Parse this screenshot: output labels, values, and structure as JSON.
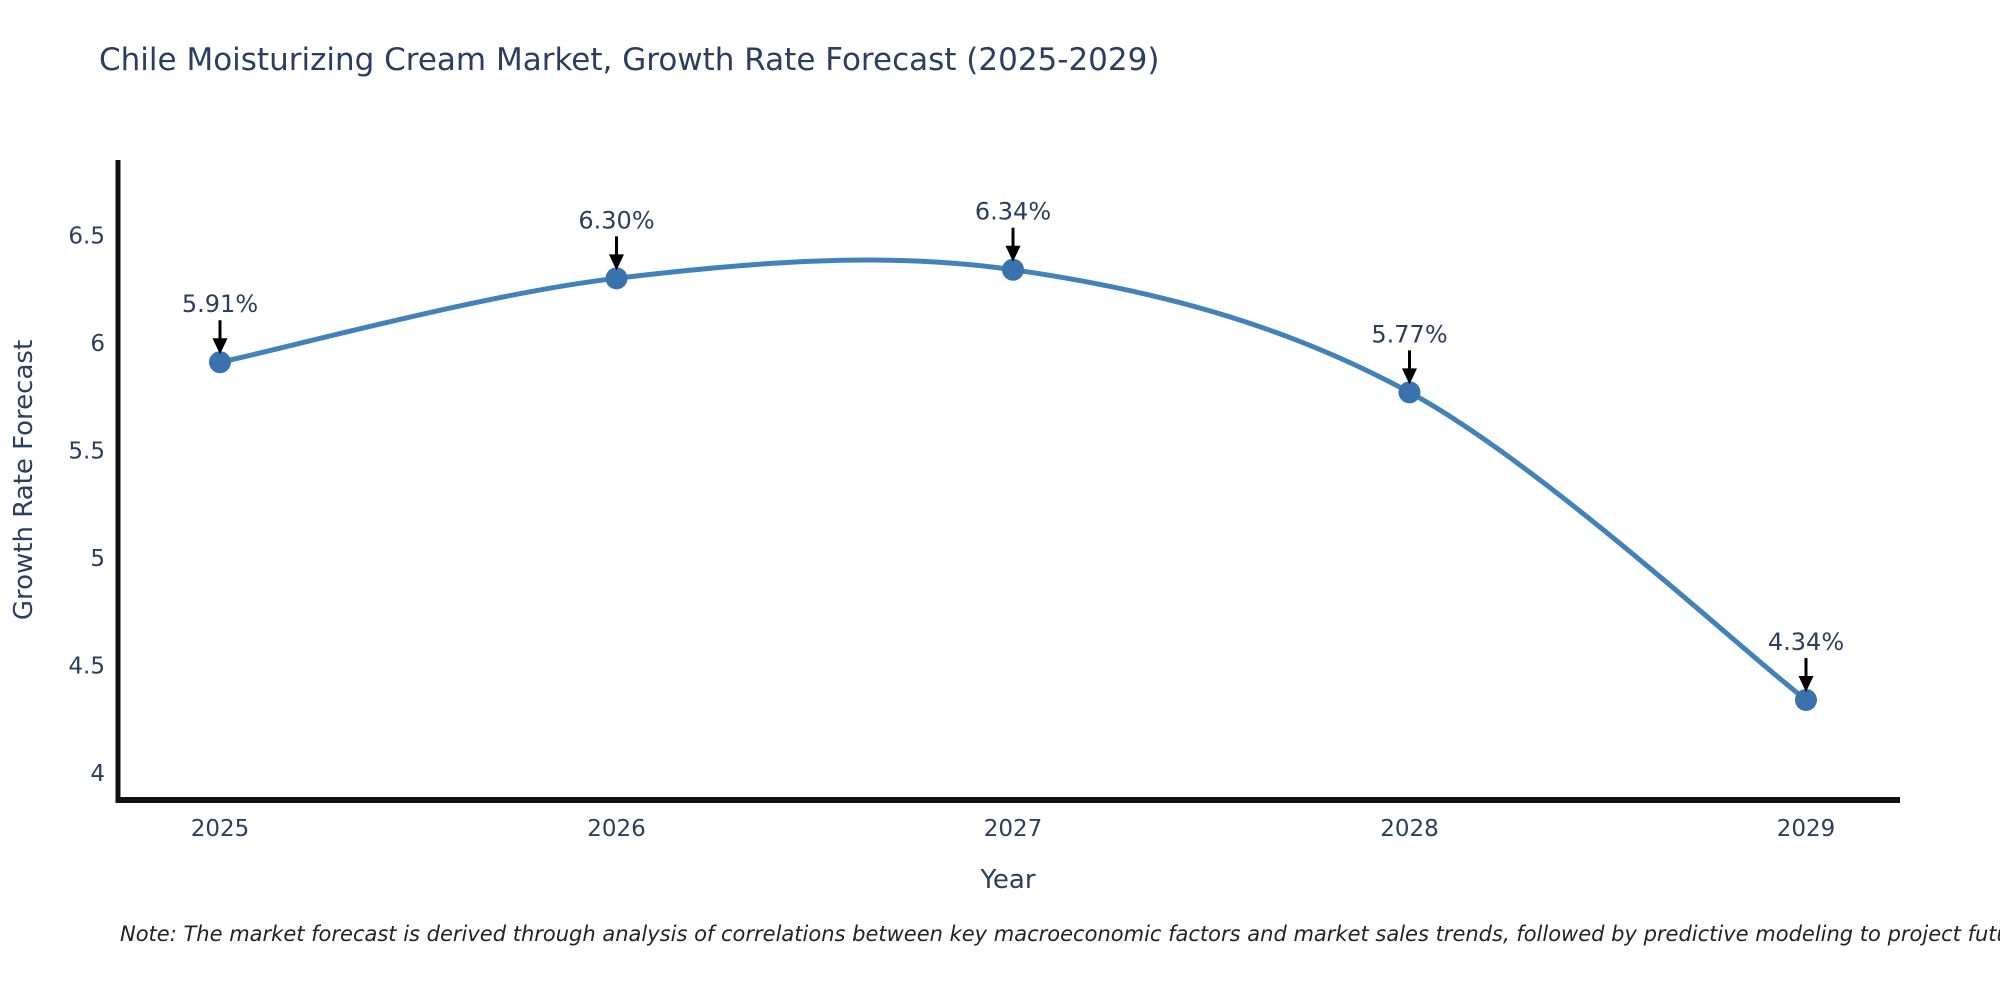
{
  "header": {
    "title": "Chile Moisturizing Cream Market, Growth Rate Forecast (2025-2029)"
  },
  "chart_data": {
    "type": "line",
    "line_shape": "spline",
    "x": [
      2025,
      2026,
      2027,
      2028,
      2029
    ],
    "values": [
      5.91,
      6.3,
      6.34,
      5.77,
      4.34
    ],
    "point_labels": [
      "5.91%",
      "6.30%",
      "6.34%",
      "5.77%",
      "4.34%"
    ],
    "title": "Chile Moisturizing Cream Market, Growth Rate Forecast (2025-2029)",
    "xlabel": "Year",
    "ylabel": "Growth Rate Forecast",
    "x_tick_labels": [
      "2025",
      "2026",
      "2027",
      "2028",
      "2029"
    ],
    "y_tick_values": [
      4,
      4.5,
      5,
      5.5,
      6,
      6.5
    ],
    "y_tick_labels": [
      "4",
      "4.5",
      "5",
      "5.5",
      "6",
      "6.5"
    ],
    "ylim": [
      3.875,
      6.85
    ],
    "grid": false,
    "legend": "none",
    "colors": {
      "line": "#4282ba",
      "marker": "#3a72ae",
      "axis": "#111111",
      "text": "#2a3f5f",
      "arrow": "#000000",
      "note": "#222222"
    }
  },
  "footer": {
    "note": "Note: The market forecast is derived through analysis of correlations between key macroeconomic factors and market sales trends, followed by predictive modeling to project future sales."
  }
}
